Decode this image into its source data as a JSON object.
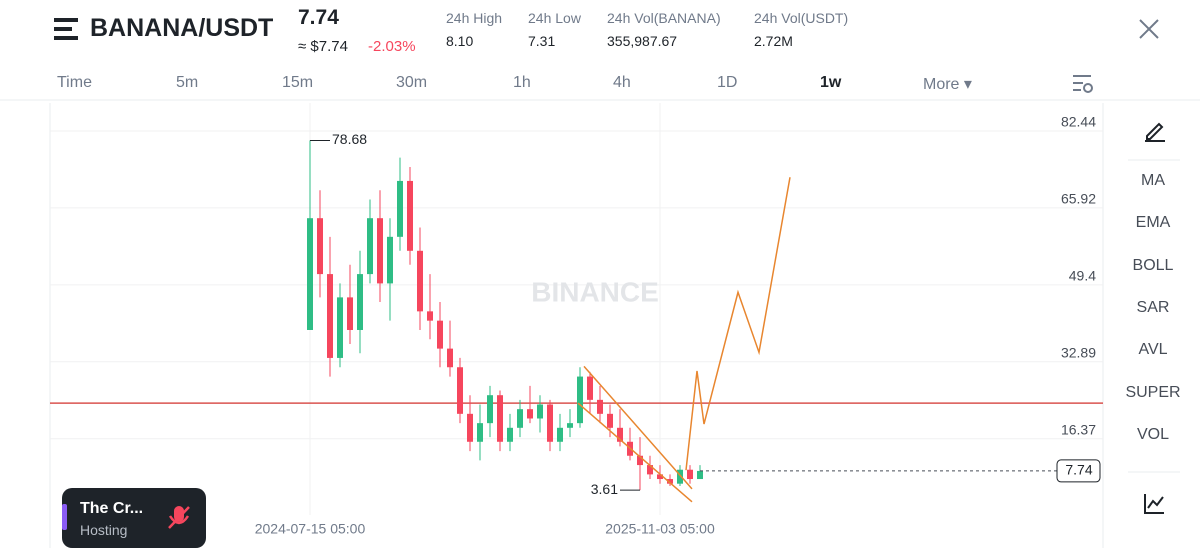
{
  "header": {
    "pair": "BANANA/USDT",
    "price": "7.74",
    "price_usd": "≈ $7.74",
    "change": "-2.03%",
    "stats": [
      {
        "label": "24h High",
        "value": "8.10"
      },
      {
        "label": "24h Low",
        "value": "7.31"
      },
      {
        "label": "24h Vol(BANANA)",
        "value": "355,987.67"
      },
      {
        "label": "24h Vol(USDT)",
        "value": "2.72M"
      }
    ]
  },
  "timeframes": [
    "Time",
    "5m",
    "15m",
    "30m",
    "1h",
    "4h",
    "1D",
    "1w",
    "More"
  ],
  "indicators": [
    "MA",
    "EMA",
    "BOLL",
    "SAR",
    "AVL",
    "SUPER",
    "VOL"
  ],
  "overlay": {
    "title": "The Cr...",
    "subtitle": "Hosting"
  },
  "chart_data": {
    "type": "candlestick",
    "watermark": "BINANCE",
    "ylim": [
      -1.72,
      86.73
    ],
    "yticks": [
      16.37,
      32.89,
      49.4,
      65.92,
      82.44
    ],
    "grid": true,
    "up_color": "#2ebd85",
    "down_color": "#f6465d",
    "xtick_labels": [
      {
        "index": 0,
        "label": "2024-07-15 05:00"
      },
      {
        "index": 35,
        "label": "2025-11-03 05:00"
      }
    ],
    "open": [
      38,
      62,
      50,
      32,
      45,
      38,
      50,
      62,
      48,
      58,
      70,
      55,
      42,
      40,
      34,
      30,
      20,
      14,
      18,
      24,
      14,
      17,
      21,
      19,
      22,
      14,
      17,
      18,
      28,
      23,
      20,
      17,
      14,
      11,
      9,
      7,
      6,
      5,
      8,
      6
    ],
    "high": [
      78.68,
      68,
      58,
      48,
      52,
      55,
      66,
      68,
      62,
      75,
      73,
      60,
      50,
      44,
      40,
      32,
      24,
      22,
      26,
      25,
      20,
      23,
      26,
      24,
      23,
      20,
      21,
      30,
      29,
      26,
      22,
      21,
      17,
      15,
      11,
      9,
      7,
      9,
      9,
      9
    ],
    "low": [
      38,
      45,
      28,
      30,
      35,
      33,
      48,
      44,
      40,
      55,
      52,
      38,
      36,
      30,
      28,
      18,
      12,
      10,
      15,
      12,
      12,
      15,
      18,
      16,
      12,
      12,
      15,
      17,
      20,
      18,
      15,
      13,
      10,
      3.61,
      6,
      5,
      4.5,
      4.5,
      5,
      6
    ],
    "close": [
      62,
      50,
      32,
      45,
      38,
      50,
      62,
      48,
      58,
      70,
      55,
      42,
      40,
      34,
      30,
      20,
      14,
      18,
      24,
      14,
      17,
      21,
      19,
      22,
      14,
      17,
      18,
      28,
      23,
      20,
      17,
      14,
      11,
      9,
      7,
      6,
      5,
      8,
      6,
      7.74
    ],
    "high_label": {
      "index": 0,
      "value": 78.68
    },
    "low_label": {
      "index": 33,
      "value": 3.61
    },
    "last_price": 7.74,
    "support_level": 22.3,
    "support_color": "#d9534f",
    "projection": {
      "color": "#e8862f",
      "x": [
        37.6,
        38.7,
        39.4,
        42.8,
        44.9,
        48
      ],
      "values": [
        7.9,
        29.2,
        17.8,
        46.1,
        33.2,
        70.8
      ]
    },
    "channel_upper": {
      "x": [
        27.4,
        38.2
      ],
      "values": [
        30.2,
        3.9
      ]
    },
    "channel_lower": {
      "x": [
        26.8,
        38.2
      ],
      "values": [
        22.3,
        1.1
      ]
    }
  }
}
